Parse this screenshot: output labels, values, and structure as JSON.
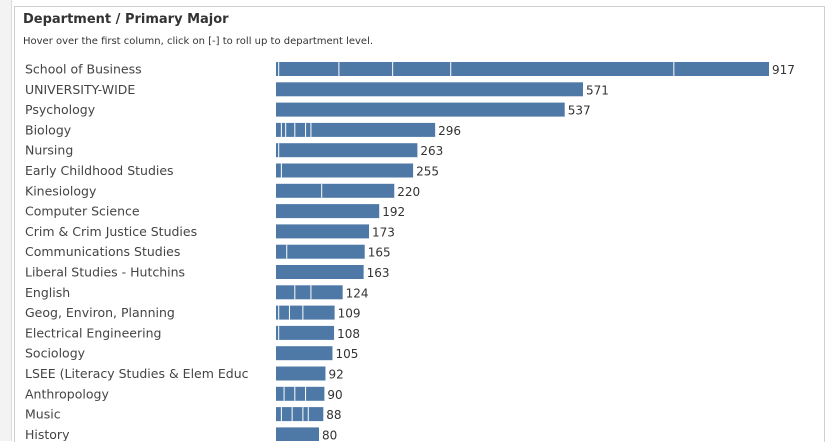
{
  "header": {
    "title": "Department / Primary Major",
    "subtitle": "Hover over the first column, click on [-] to roll up to department level."
  },
  "colors": {
    "bar": "#4e79a7",
    "segment_divider": "#ffffff"
  },
  "chart_data": {
    "type": "bar",
    "orientation": "horizontal",
    "categories": [
      "School of Business",
      "UNIVERSITY-WIDE",
      "Psychology",
      "Biology",
      "Nursing",
      "Early Childhood Studies",
      "Kinesiology",
      "Computer Science",
      "Crim & Crim Justice Studies",
      "Communications Studies",
      "Liberal Studies - Hutchins",
      "English",
      "Geog, Environ, Planning",
      "Electrical Engineering",
      "Sociology",
      "LSEE (Literacy Studies & Elem Educ",
      "Anthropology",
      "Music",
      "History"
    ],
    "values": [
      917,
      571,
      537,
      296,
      263,
      255,
      220,
      192,
      173,
      165,
      163,
      124,
      109,
      108,
      105,
      92,
      90,
      88,
      80
    ],
    "segment_boundaries": [
      [
        5,
        117,
        217,
        325,
        740
      ],
      [],
      [],
      [
        10,
        18,
        35,
        55,
        65
      ],
      [
        5
      ],
      [
        10
      ],
      [
        85
      ],
      [],
      [],
      [
        20
      ],
      [],
      [
        35,
        65
      ],
      [
        5,
        25,
        50
      ],
      [
        5
      ],
      [],
      [],
      [
        15,
        35,
        55
      ],
      [
        10,
        30,
        50,
        60
      ],
      []
    ],
    "xlim": [
      0,
      917
    ],
    "grid": false
  }
}
